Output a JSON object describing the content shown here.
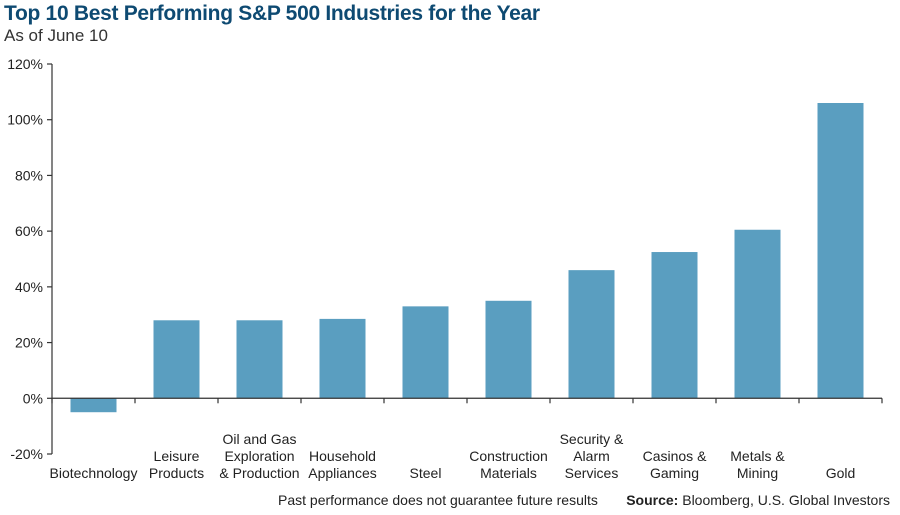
{
  "header": {
    "title": "Top 10 Best Performing S&P 500 Industries for the Year",
    "subtitle": "As of June 10"
  },
  "footer": {
    "disclaimer": "Past performance does not guarantee future results",
    "source_label": "Source:",
    "source_text": "Bloomberg, U.S. Global Investors"
  },
  "colors": {
    "bar": "#5a9ec0",
    "axis": "#333333",
    "title": "#0e4a72"
  },
  "chart_data": {
    "type": "bar",
    "title": "Top 10 Best Performing S&P 500 Industries for the Year",
    "subtitle": "As of June 10",
    "categories": [
      [
        "Biotechnology"
      ],
      [
        "Leisure",
        "Products"
      ],
      [
        "Oil and Gas",
        "Exploration",
        "& Production"
      ],
      [
        "Household",
        "Appliances"
      ],
      [
        "Steel"
      ],
      [
        "Construction",
        "Materials"
      ],
      [
        "Security &",
        "Alarm",
        "Services"
      ],
      [
        "Casinos &",
        "Gaming"
      ],
      [
        "Metals &",
        "Mining"
      ],
      [
        "Gold"
      ]
    ],
    "values": [
      -5,
      28,
      28,
      28.5,
      33,
      35,
      46,
      52.5,
      60.5,
      106
    ],
    "unit": "%",
    "ylim": [
      -20,
      120
    ],
    "yticks": [
      -20,
      0,
      20,
      40,
      60,
      80,
      100,
      120
    ],
    "ytick_labels": [
      "-20%",
      "0%",
      "20%",
      "40%",
      "60%",
      "80%",
      "100%",
      "120%"
    ],
    "grid": false,
    "legend": "none"
  }
}
